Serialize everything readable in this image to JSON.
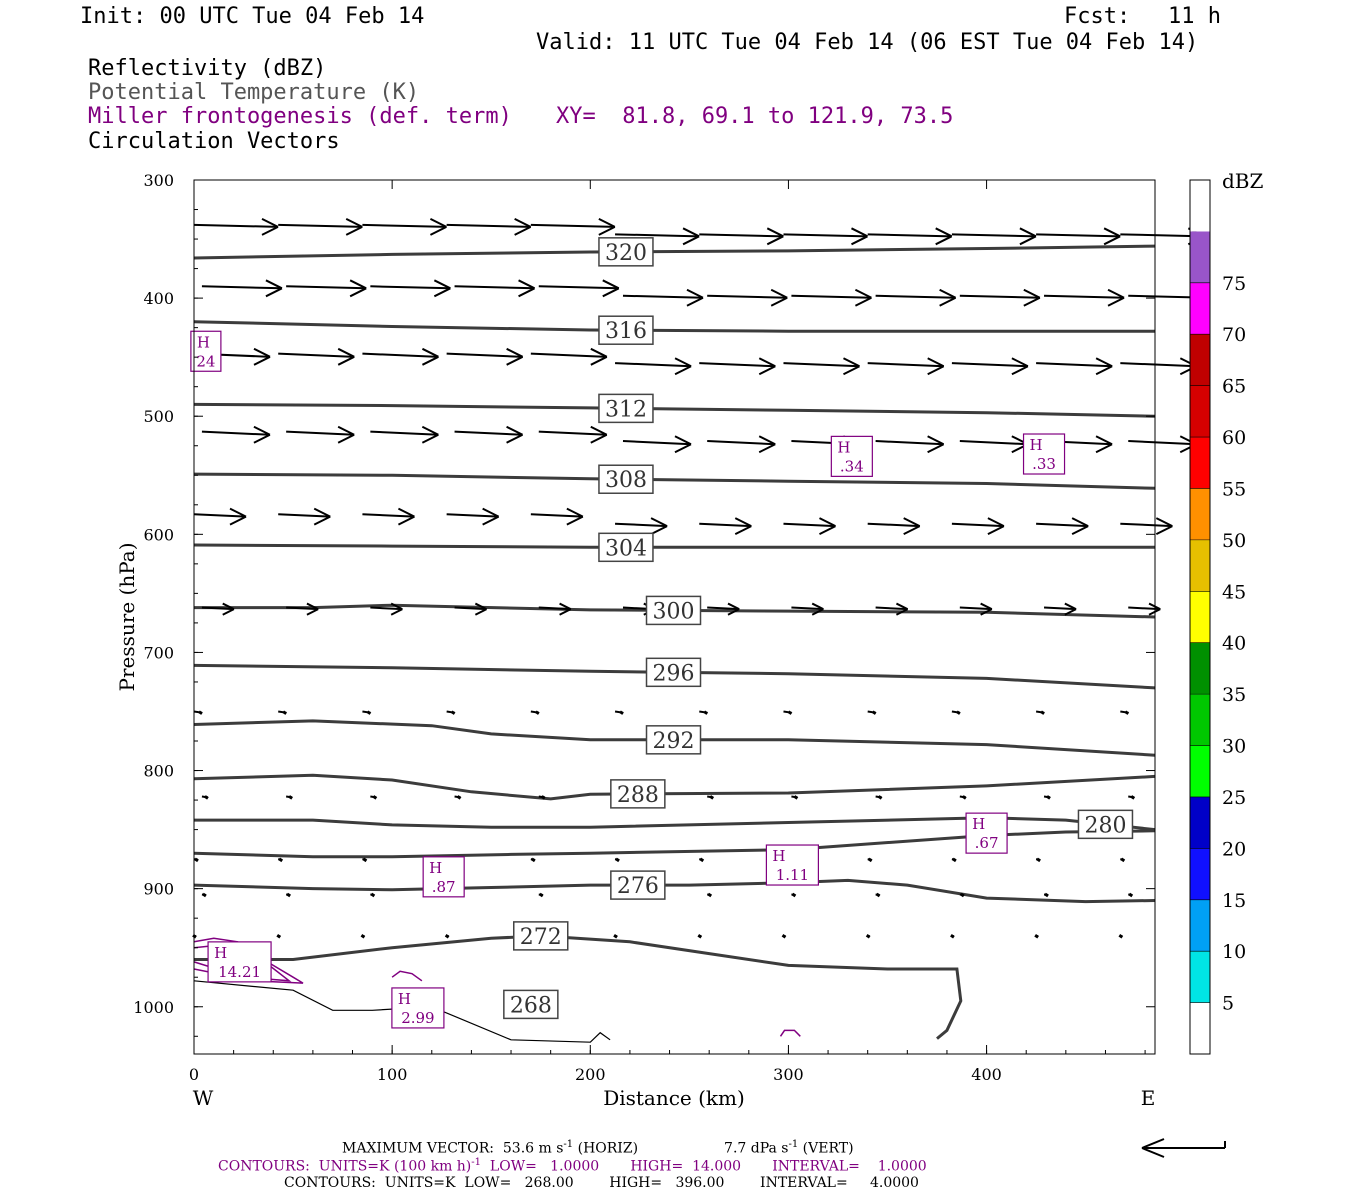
{
  "header": {
    "init": "Init: 00 UTC Tue 04 Feb 14",
    "fcst_label": "Fcst:",
    "fcst_value": "11 h",
    "valid": "Valid: 11 UTC Tue 04 Feb 14 (06 EST Tue 04 Feb 14)",
    "field1": "Reflectivity (dBZ)",
    "field2": "Potential Temperature (K)",
    "field3": "Miller frontogenesis (def. term)",
    "xy": "XY=  81.8, 69.1 to 121.9, 73.5",
    "field4": "Circulation Vectors"
  },
  "footer": {
    "max_vector_prefix": "MAXIMUM VECTOR:  53.6 m s",
    "max_vector_horiz": " (HORIZ)",
    "max_vector_vert_prefix": "7.7 dPa s",
    "max_vector_vert": " (VERT)",
    "exp": "-1",
    "contours1_prefix": "CONTOURS:  UNITS=K (100 km h)",
    "contours1_suffix": "  LOW=   1.0000       HIGH=  14.000       INTERVAL=    1.0000",
    "contours2": "CONTOURS:  UNITS=K  LOW=   268.00        HIGH=   396.00        INTERVAL=     4.0000"
  },
  "chart_data": {
    "type": "line",
    "xlabel": "Distance (km)",
    "ylabel": "Pressure (hPa)",
    "xlim": [
      0,
      485
    ],
    "ylim": [
      1040,
      300
    ],
    "x_ticks": [
      0,
      100,
      200,
      300,
      400
    ],
    "y_ticks": [
      300,
      400,
      500,
      600,
      700,
      800,
      900,
      1000
    ],
    "left_end_label": "W",
    "right_end_label": "E",
    "theta_contours": [
      {
        "label": "320",
        "label_x": 218,
        "points": [
          [
            0,
            366
          ],
          [
            100,
            363
          ],
          [
            200,
            361
          ],
          [
            300,
            360
          ],
          [
            400,
            358
          ],
          [
            485,
            356
          ]
        ]
      },
      {
        "label": "316",
        "label_x": 218,
        "points": [
          [
            0,
            420
          ],
          [
            100,
            424
          ],
          [
            200,
            427
          ],
          [
            300,
            428
          ],
          [
            400,
            428
          ],
          [
            485,
            428
          ]
        ]
      },
      {
        "label": "312",
        "label_x": 218,
        "points": [
          [
            0,
            490
          ],
          [
            100,
            491
          ],
          [
            200,
            493
          ],
          [
            300,
            495
          ],
          [
            400,
            497
          ],
          [
            485,
            500
          ]
        ]
      },
      {
        "label": "308",
        "label_x": 218,
        "points": [
          [
            0,
            549
          ],
          [
            100,
            550
          ],
          [
            200,
            553
          ],
          [
            300,
            555
          ],
          [
            400,
            557
          ],
          [
            485,
            561
          ]
        ]
      },
      {
        "label": "304",
        "label_x": 218,
        "points": [
          [
            0,
            609
          ],
          [
            100,
            610
          ],
          [
            200,
            611
          ],
          [
            300,
            611
          ],
          [
            400,
            611
          ],
          [
            485,
            611
          ]
        ]
      },
      {
        "label": "300",
        "label_x": 242,
        "points": [
          [
            0,
            662
          ],
          [
            60,
            662
          ],
          [
            100,
            660
          ],
          [
            200,
            664
          ],
          [
            300,
            665
          ],
          [
            400,
            666
          ],
          [
            485,
            670
          ]
        ]
      },
      {
        "label": "296",
        "label_x": 242,
        "points": [
          [
            0,
            711
          ],
          [
            100,
            713
          ],
          [
            200,
            716
          ],
          [
            300,
            718
          ],
          [
            400,
            722
          ],
          [
            485,
            730
          ]
        ]
      },
      {
        "label": "292",
        "label_x": 242,
        "points": [
          [
            0,
            761
          ],
          [
            60,
            758
          ],
          [
            120,
            762
          ],
          [
            150,
            769
          ],
          [
            200,
            774
          ],
          [
            300,
            774
          ],
          [
            400,
            778
          ],
          [
            485,
            787
          ]
        ]
      },
      {
        "label": "288",
        "label_x": 224,
        "points": [
          [
            0,
            807
          ],
          [
            60,
            804
          ],
          [
            100,
            808
          ],
          [
            140,
            818
          ],
          [
            180,
            824
          ],
          [
            200,
            820
          ],
          [
            300,
            819
          ],
          [
            400,
            813
          ],
          [
            485,
            805
          ]
        ]
      },
      {
        "label": "280",
        "label_x": 460,
        "points": [
          [
            0,
            842
          ],
          [
            60,
            842
          ],
          [
            100,
            846
          ],
          [
            150,
            848
          ],
          [
            200,
            848
          ],
          [
            300,
            844
          ],
          [
            400,
            840
          ],
          [
            440,
            842
          ],
          [
            485,
            850
          ]
        ]
      },
      {
        "label": "",
        "label_x": 0,
        "points": [
          [
            0,
            870
          ],
          [
            60,
            873
          ],
          [
            100,
            873
          ],
          [
            160,
            871
          ],
          [
            200,
            870
          ],
          [
            300,
            867
          ],
          [
            400,
            855
          ],
          [
            440,
            852
          ],
          [
            485,
            851
          ]
        ]
      },
      {
        "label": "276",
        "label_x": 224,
        "points": [
          [
            0,
            897
          ],
          [
            60,
            900
          ],
          [
            100,
            901
          ],
          [
            150,
            899
          ],
          [
            200,
            897
          ],
          [
            250,
            897
          ],
          [
            300,
            895
          ],
          [
            330,
            893
          ],
          [
            360,
            897
          ],
          [
            400,
            908
          ],
          [
            450,
            911
          ],
          [
            485,
            910
          ]
        ]
      },
      {
        "label": "272",
        "label_x": 175,
        "points": [
          [
            0,
            960
          ],
          [
            50,
            960
          ],
          [
            100,
            950
          ],
          [
            150,
            942
          ],
          [
            175,
            940
          ],
          [
            220,
            945
          ],
          [
            260,
            955
          ],
          [
            300,
            965
          ],
          [
            350,
            968
          ],
          [
            385,
            968
          ],
          [
            387,
            995
          ],
          [
            380,
            1020
          ],
          [
            375,
            1027
          ]
        ]
      }
    ],
    "thin_contour": {
      "label": "268",
      "label_x": 170,
      "points": [
        [
          0,
          978
        ],
        [
          50,
          986
        ],
        [
          70,
          1003
        ],
        [
          90,
          1003
        ],
        [
          120,
          1000
        ],
        [
          160,
          1028
        ],
        [
          200,
          1030
        ],
        [
          205,
          1022
        ],
        [
          210,
          1028
        ]
      ]
    },
    "frontogenesis_maxima": [
      {
        "label": "H",
        "value": "24",
        "x": 6,
        "p": 445
      },
      {
        "label": "H",
        "value": ".34",
        "x": 332,
        "p": 534
      },
      {
        "label": "H",
        "value": ".33",
        "x": 429,
        "p": 532
      },
      {
        "label": "H",
        "value": ".67",
        "x": 400,
        "p": 853
      },
      {
        "label": "H",
        "value": "1.11",
        "x": 302,
        "p": 880
      },
      {
        "label": "H",
        "value": ".87",
        "x": 126,
        "p": 890
      },
      {
        "label": "H",
        "value": "14.21",
        "x": 23,
        "p": 962
      },
      {
        "label": "H",
        "value": "2.99",
        "x": 113,
        "p": 1001
      }
    ],
    "vector_rows": [
      {
        "p": 338,
        "u": 42,
        "w": 0.5
      },
      {
        "p": 390,
        "u": 40,
        "w": 0.5
      },
      {
        "p": 447,
        "u": 38,
        "w": 0.8
      },
      {
        "p": 513,
        "u": 34,
        "w": 0.8
      },
      {
        "p": 583,
        "u": 26,
        "w": 0.6
      },
      {
        "p": 662,
        "u": 16,
        "w": 0.4
      },
      {
        "p": 750,
        "u": 4,
        "w": 0.3
      },
      {
        "p": 822,
        "u": 3,
        "w": 0.2
      },
      {
        "p": 875,
        "u": 2,
        "w": 0.2
      },
      {
        "p": 905,
        "u": 2,
        "w": 0.1
      },
      {
        "p": 940,
        "u": 1,
        "w": 0.1
      }
    ],
    "colorbar": {
      "unit": "dBZ",
      "levels": [
        5,
        10,
        15,
        20,
        25,
        30,
        35,
        40,
        45,
        50,
        55,
        60,
        65,
        70,
        75
      ],
      "colors": [
        "#ffffff",
        "#00e5e5",
        "#00a0f5",
        "#1010ff",
        "#0000c8",
        "#00ff00",
        "#00c800",
        "#009000",
        "#ffff00",
        "#e6c000",
        "#ff9000",
        "#ff0000",
        "#d60000",
        "#c00000",
        "#ff00ff",
        "#9955c9",
        "#ffffff"
      ]
    }
  }
}
